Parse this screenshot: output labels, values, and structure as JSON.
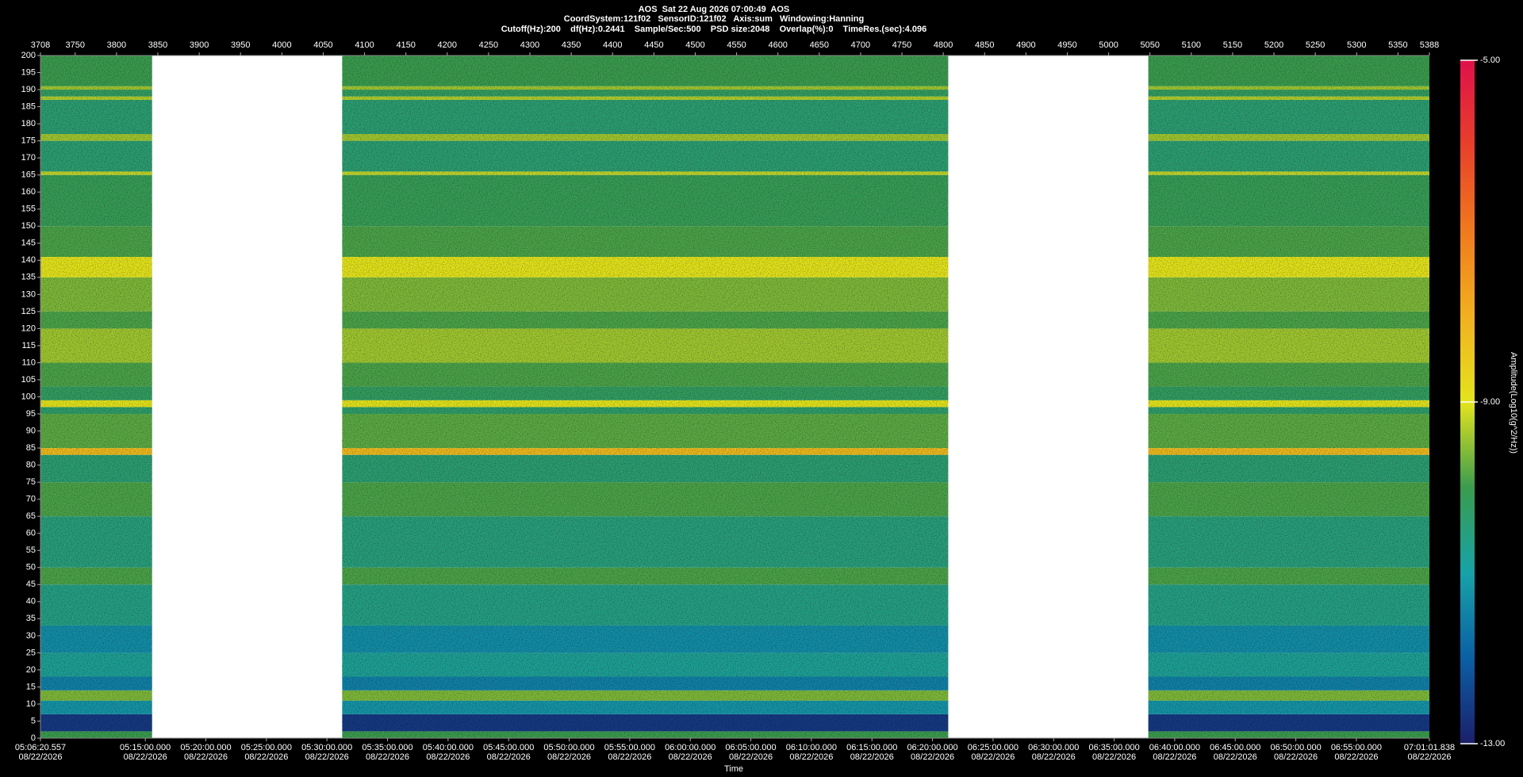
{
  "chart_data": {
    "type": "spectrogram",
    "title": "AOS  Sat 22 Aug 2026 07:00:49  AOS",
    "subtitle": [
      "CoordSystem:121f02   SensorID:121f02   Axis:sum   Windowing:Hanning",
      "Cutoff(Hz):200    df(Hz):0.2441    Sample/Sec:500    PSD size:2048    Overlap(%):0    TimeRes.(sec):4.096"
    ],
    "xlabel": "Time",
    "colorbar_label": "Amplitude(Log10(g^2/Hz))",
    "xlim": [
      3708,
      5388
    ],
    "xticks": [
      3708,
      3750,
      3800,
      3850,
      3900,
      3950,
      4000,
      4050,
      4100,
      4150,
      4200,
      4250,
      4300,
      4350,
      4400,
      4450,
      4500,
      4550,
      4600,
      4650,
      4700,
      4750,
      4800,
      4850,
      4900,
      4950,
      5000,
      5050,
      5100,
      5150,
      5200,
      5250,
      5300,
      5350,
      5388
    ],
    "x2ticks": [
      {
        "value": 3708,
        "label": "05:06:20.557",
        "date": "08/22/2026"
      },
      {
        "value": 3834.82,
        "label": "05:15:00.000",
        "date": "08/22/2026"
      },
      {
        "value": 3908.06,
        "label": "05:20:00.000",
        "date": "08/22/2026"
      },
      {
        "value": 3981.3,
        "label": "05:25:00.000",
        "date": "08/22/2026"
      },
      {
        "value": 4054.54,
        "label": "05:30:00.000",
        "date": "08/22/2026"
      },
      {
        "value": 4127.79,
        "label": "05:35:00.000",
        "date": "08/22/2026"
      },
      {
        "value": 4201.03,
        "label": "05:40:00.000",
        "date": "08/22/2026"
      },
      {
        "value": 4274.27,
        "label": "05:45:00.000",
        "date": "08/22/2026"
      },
      {
        "value": 4347.51,
        "label": "05:50:00.000",
        "date": "08/22/2026"
      },
      {
        "value": 4420.76,
        "label": "05:55:00.000",
        "date": "08/22/2026"
      },
      {
        "value": 4494.0,
        "label": "06:00:00.000",
        "date": "08/22/2026"
      },
      {
        "value": 4567.24,
        "label": "06:05:00.000",
        "date": "08/22/2026"
      },
      {
        "value": 4640.48,
        "label": "06:10:00.000",
        "date": "08/22/2026"
      },
      {
        "value": 4713.73,
        "label": "06:15:00.000",
        "date": "08/22/2026"
      },
      {
        "value": 4786.97,
        "label": "06:20:00.000",
        "date": "08/22/2026"
      },
      {
        "value": 4860.21,
        "label": "06:25:00.000",
        "date": "08/22/2026"
      },
      {
        "value": 4933.45,
        "label": "06:30:00.000",
        "date": "08/22/2026"
      },
      {
        "value": 5006.7,
        "label": "06:35:00.000",
        "date": "08/22/2026"
      },
      {
        "value": 5079.94,
        "label": "06:40:00.000",
        "date": "08/22/2026"
      },
      {
        "value": 5153.18,
        "label": "06:45:00.000",
        "date": "08/22/2026"
      },
      {
        "value": 5226.42,
        "label": "06:50:00.000",
        "date": "08/22/2026"
      },
      {
        "value": 5299.67,
        "label": "06:55:00.000",
        "date": "08/22/2026"
      },
      {
        "value": 5388,
        "label": "07:01:01.838",
        "date": "08/22/2026"
      }
    ],
    "ylim": [
      0,
      200
    ],
    "yticks": [
      0,
      5,
      10,
      15,
      20,
      25,
      30,
      35,
      40,
      45,
      50,
      55,
      60,
      65,
      70,
      75,
      80,
      85,
      90,
      95,
      100,
      105,
      110,
      115,
      120,
      125,
      130,
      135,
      140,
      145,
      150,
      155,
      160,
      165,
      170,
      175,
      180,
      185,
      190,
      195,
      200
    ],
    "segments": [
      [
        3708,
        3843
      ],
      [
        4073,
        4806
      ],
      [
        5048,
        5388
      ]
    ],
    "freq_bins": [
      0,
      2,
      7,
      11,
      14,
      18,
      25,
      33,
      45,
      50,
      65,
      75,
      83,
      85,
      95,
      97,
      99,
      103,
      110,
      120,
      125,
      135,
      141,
      150,
      165,
      166,
      175,
      177,
      187,
      188,
      190,
      191,
      200
    ],
    "amplitude": [
      -10.0,
      -12.6,
      -11.2,
      -9.6,
      -11.5,
      -10.8,
      -11.3,
      -10.6,
      -9.9,
      -10.5,
      -9.9,
      -10.4,
      -8.2,
      -9.8,
      -10.3,
      -9.0,
      -10.2,
      -9.9,
      -9.4,
      -9.9,
      -9.6,
      -9.0,
      -9.9,
      -10.1,
      -9.2,
      -10.4,
      -9.4,
      -10.4,
      -9.3,
      -10.2,
      -9.4,
      -10.0
    ],
    "zlim": [
      -13,
      -5
    ],
    "zticks": [
      {
        "value": -5,
        "label": "-5.00"
      },
      {
        "value": -9,
        "label": "-9.00"
      },
      {
        "value": -13,
        "label": "-13.00"
      }
    ],
    "colormap": [
      "#1c1f6b",
      "#0b5fa5",
      "#17a2a8",
      "#3a9c4e",
      "#e4e41c",
      "#f2b01e",
      "#f07a1e",
      "#e8402a",
      "#e0104a"
    ]
  }
}
